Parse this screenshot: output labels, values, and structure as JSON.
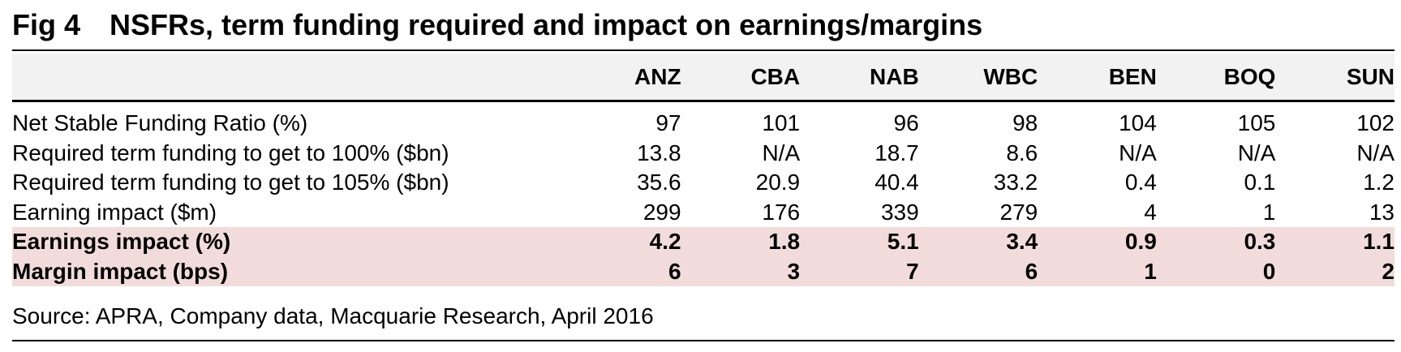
{
  "title": "Fig 4 NSFRs, term funding required and impact on earnings/margins",
  "table": {
    "columns": [
      "ANZ",
      "CBA",
      "NAB",
      "WBC",
      "BEN",
      "BOQ",
      "SUN"
    ],
    "rows": [
      {
        "label": "Net Stable Funding Ratio (%)",
        "values": [
          "97",
          "101",
          "96",
          "98",
          "104",
          "105",
          "102"
        ]
      },
      {
        "label": "Required term funding to get to 100% ($bn)",
        "values": [
          "13.8",
          "N/A",
          "18.7",
          "8.6",
          "N/A",
          "N/A",
          "N/A"
        ]
      },
      {
        "label": "Required term funding to get to 105% ($bn)",
        "values": [
          "35.6",
          "20.9",
          "40.4",
          "33.2",
          "0.4",
          "0.1",
          "1.2"
        ]
      },
      {
        "label": "Earning impact ($m)",
        "values": [
          "299",
          "176",
          "339",
          "279",
          "4",
          "1",
          "13"
        ]
      },
      {
        "label": "Earnings impact (%)",
        "values": [
          "4.2",
          "1.8",
          "5.1",
          "3.4",
          "0.9",
          "0.3",
          "1.1"
        ],
        "highlighted": true
      },
      {
        "label": "Margin impact (bps)",
        "values": [
          "6",
          "3",
          "7",
          "6",
          "1",
          "0",
          "2"
        ],
        "highlighted": true
      }
    ]
  },
  "source": "Source: APRA, Company data, Macquarie Research, April 2016"
}
